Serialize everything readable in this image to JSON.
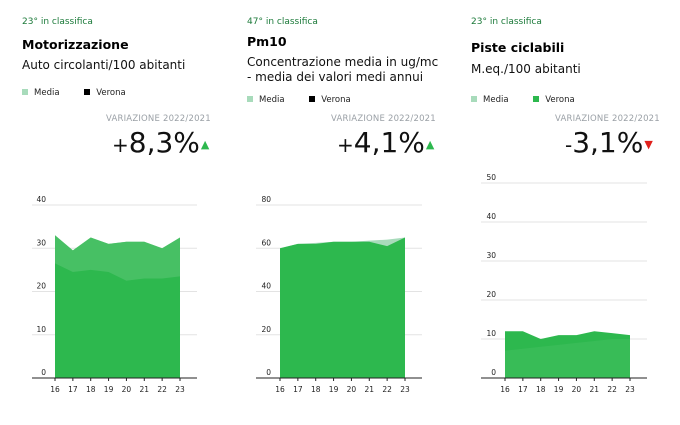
{
  "colors": {
    "media": "#a8dbbb",
    "verona": "#2db84e",
    "verona_legend_dark": "#000000",
    "up_arrow": "#2db84e",
    "down_arrow": "#e0201b",
    "rank_text": "#1c7a3a"
  },
  "panels": [
    {
      "rank": "23° in classifica",
      "title": "Motorizzazione",
      "subtitle_lines": [
        "Auto circolanti/100 abitanti"
      ],
      "legend": [
        {
          "label": "Media",
          "color": "#a8dbbb"
        },
        {
          "label": "Verona",
          "color": "#000000"
        }
      ],
      "variation_label": "VARIAZIONE 2022/2021",
      "variation_sign": "+",
      "variation_value": "8,3%",
      "variation_arrow": "▲",
      "variation_direction": "up"
    },
    {
      "rank": "47° in classifica",
      "title": "Pm10",
      "subtitle_lines": [
        "Concentrazione media in ug/mc",
        "- media dei valori medi annui"
      ],
      "legend": [
        {
          "label": "Media",
          "color": "#a8dbbb"
        },
        {
          "label": "Verona",
          "color": "#000000"
        }
      ],
      "variation_label": "VARIAZIONE 2022/2021",
      "variation_sign": "+",
      "variation_value": "4,1%",
      "variation_arrow": "▲",
      "variation_direction": "up"
    },
    {
      "rank": "23° in classifica",
      "title": "Piste ciclabili",
      "subtitle_lines": [
        "M.eq./100 abitanti"
      ],
      "legend": [
        {
          "label": "Media",
          "color": "#a8dbbb"
        },
        {
          "label": "Verona",
          "color": "#2db84e"
        }
      ],
      "variation_label": "VARIAZIONE 2022/2021",
      "variation_sign": "-",
      "variation_value": "3,1%",
      "variation_arrow": "▼",
      "variation_direction": "down"
    }
  ],
  "chart_data": [
    {
      "type": "area",
      "x": [
        "16",
        "17",
        "18",
        "19",
        "20",
        "21",
        "22",
        "23"
      ],
      "yticks": [
        0,
        10,
        20,
        30,
        40
      ],
      "ylim": [
        0,
        40
      ],
      "grid": true,
      "series": [
        {
          "name": "Media",
          "values": [
            33,
            29.5,
            32.5,
            31,
            31.5,
            31.5,
            30,
            32.5
          ]
        },
        {
          "name": "Verona",
          "values": [
            26.5,
            24.5,
            25,
            24.5,
            22.5,
            23,
            23,
            23.5
          ]
        }
      ]
    },
    {
      "type": "area",
      "x": [
        "16",
        "17",
        "18",
        "19",
        "20",
        "21",
        "22",
        "23"
      ],
      "yticks": [
        0,
        20,
        40,
        60,
        80
      ],
      "ylim": [
        0,
        80
      ],
      "grid": true,
      "series": [
        {
          "name": "Media",
          "values": [
            60,
            62,
            62.5,
            63,
            63,
            63.5,
            64,
            65
          ]
        },
        {
          "name": "Verona",
          "values": [
            60,
            62,
            62,
            63,
            63,
            63,
            61,
            65
          ]
        }
      ]
    },
    {
      "type": "area",
      "x": [
        "16",
        "17",
        "18",
        "19",
        "20",
        "21",
        "22",
        "23"
      ],
      "yticks": [
        0,
        10,
        20,
        30,
        40,
        50
      ],
      "ylim": [
        0,
        50
      ],
      "grid": true,
      "series": [
        {
          "name": "Media",
          "values": [
            7,
            7.5,
            8,
            8.5,
            9,
            9.5,
            10,
            10
          ]
        },
        {
          "name": "Verona",
          "values": [
            12,
            12,
            10,
            11,
            11,
            12,
            11.5,
            11
          ]
        }
      ]
    }
  ]
}
